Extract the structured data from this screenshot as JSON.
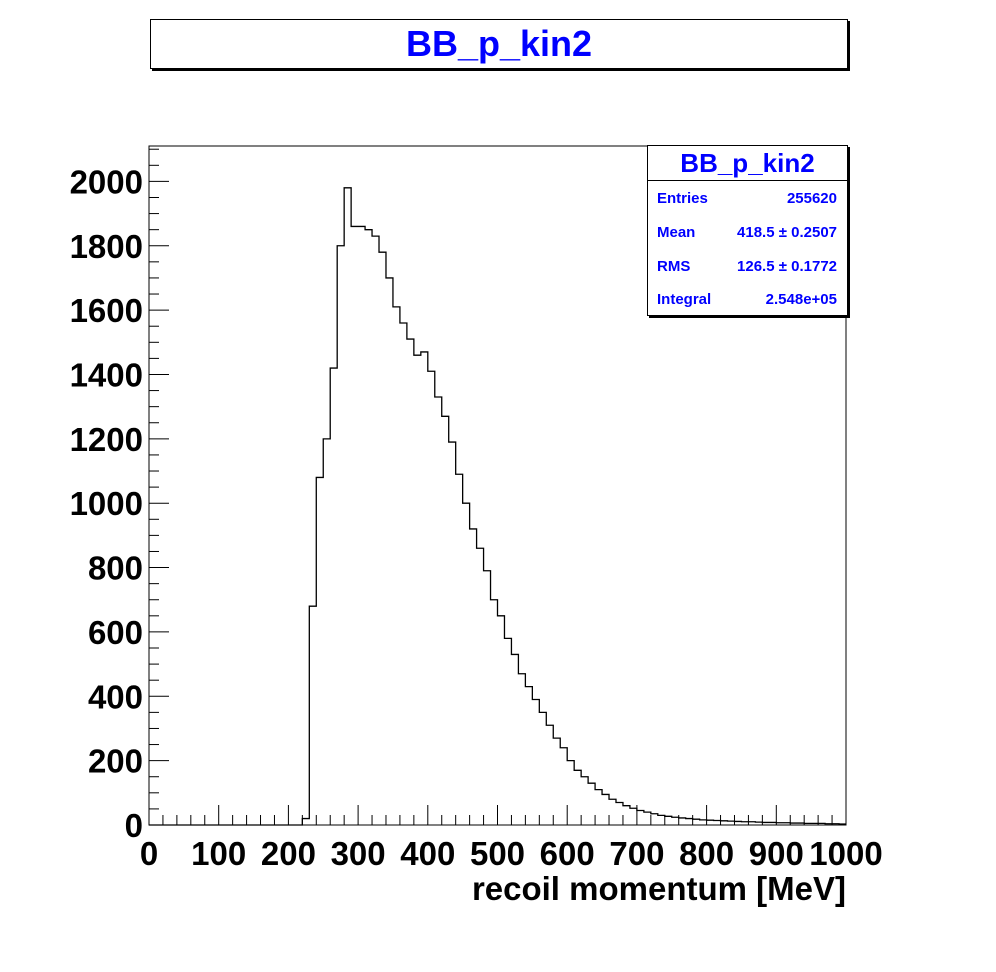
{
  "title": "BB_p_kin2",
  "stats": {
    "title": "BB_p_kin2",
    "rows": [
      {
        "label": "Entries",
        "value": "255620"
      },
      {
        "label": "Mean",
        "value": "418.5 ± 0.2507"
      },
      {
        "label": "RMS",
        "value": "126.5 ± 0.1772"
      },
      {
        "label": "Integral",
        "value": "2.548e+05"
      }
    ]
  },
  "colors": {
    "title": "#0000ff",
    "line": "#000000",
    "frame": "#000000"
  },
  "chart_data": {
    "type": "histogram",
    "title": "BB_p_kin2",
    "xlabel": "recoil momentum [MeV]",
    "ylabel": "",
    "xlim": [
      0,
      1000
    ],
    "ylim": [
      0,
      2110
    ],
    "x_ticks": [
      "0",
      "100",
      "200",
      "300",
      "400",
      "500",
      "600",
      "700",
      "800",
      "900",
      "1000"
    ],
    "y_ticks": [
      "0",
      "200",
      "400",
      "600",
      "800",
      "1000",
      "1200",
      "1400",
      "1600",
      "1800",
      "2000"
    ],
    "grid": false,
    "x": [
      225,
      235,
      245,
      255,
      265,
      275,
      285,
      295,
      305,
      315,
      325,
      335,
      345,
      355,
      365,
      375,
      385,
      395,
      405,
      415,
      425,
      435,
      445,
      455,
      465,
      475,
      485,
      495,
      505,
      515,
      525,
      535,
      545,
      555,
      565,
      575,
      585,
      595,
      605,
      615,
      625,
      635,
      645,
      655,
      665,
      675,
      685,
      695,
      705,
      715,
      725,
      735,
      745,
      755,
      765,
      775,
      785,
      795,
      805,
      815,
      825,
      835,
      845,
      855,
      865,
      875,
      885,
      895,
      905,
      915,
      925,
      935,
      945,
      955,
      965,
      975,
      985,
      995
    ],
    "values": [
      20,
      680,
      1080,
      1200,
      1420,
      1800,
      1980,
      1860,
      1860,
      1850,
      1830,
      1780,
      1700,
      1610,
      1560,
      1510,
      1460,
      1470,
      1410,
      1330,
      1270,
      1190,
      1090,
      1000,
      920,
      860,
      790,
      700,
      650,
      580,
      530,
      470,
      430,
      390,
      350,
      310,
      270,
      240,
      200,
      170,
      150,
      130,
      110,
      95,
      80,
      70,
      60,
      52,
      45,
      40,
      35,
      30,
      27,
      24,
      22,
      20,
      18,
      16,
      15,
      14,
      13,
      12,
      11,
      10,
      10,
      9,
      8,
      8,
      7,
      7,
      6,
      6,
      5,
      5,
      5,
      4,
      4,
      3
    ]
  }
}
